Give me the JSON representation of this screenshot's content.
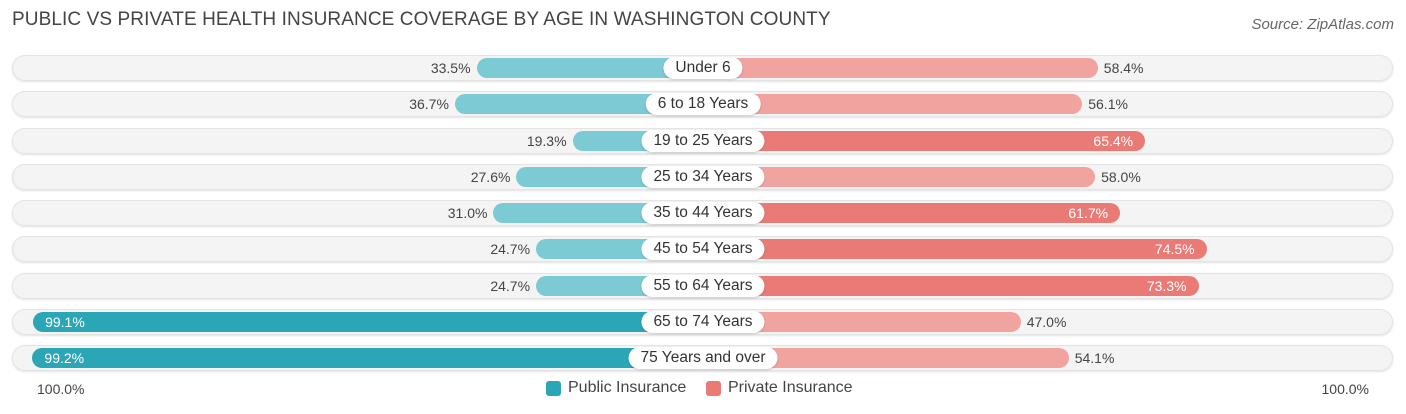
{
  "title": "PUBLIC VS PRIVATE HEALTH INSURANCE COVERAGE BY AGE IN WASHINGTON COUNTY",
  "source": "Source: ZipAtlas.com",
  "axis": {
    "left_label": "100.0%",
    "right_label": "100.0%"
  },
  "legend": {
    "public_label": "Public Insurance",
    "private_label": "Private Insurance"
  },
  "colors": {
    "public": "#7ccad4",
    "public_strong": "#2aa6b7",
    "private": "#f1a3a0",
    "private_strong": "#ea7a76"
  },
  "chart_data": {
    "type": "bar",
    "orientation": "horizontal-diverging",
    "title": "PUBLIC VS PRIVATE HEALTH INSURANCE COVERAGE BY AGE IN WASHINGTON COUNTY",
    "categories": [
      "Under 6",
      "6 to 18 Years",
      "19 to 25 Years",
      "25 to 34 Years",
      "35 to 44 Years",
      "45 to 54 Years",
      "55 to 64 Years",
      "65 to 74 Years",
      "75 Years and over"
    ],
    "series": [
      {
        "name": "Public Insurance",
        "values": [
          33.5,
          36.7,
          19.3,
          27.6,
          31.0,
          24.7,
          24.7,
          99.1,
          99.2
        ],
        "labels": [
          "33.5%",
          "36.7%",
          "19.3%",
          "27.6%",
          "31.0%",
          "24.7%",
          "24.7%",
          "99.1%",
          "99.2%"
        ]
      },
      {
        "name": "Private Insurance",
        "values": [
          58.4,
          56.1,
          65.4,
          58.0,
          61.7,
          74.5,
          73.3,
          47.0,
          54.1
        ],
        "labels": [
          "58.4%",
          "56.1%",
          "65.4%",
          "58.0%",
          "61.7%",
          "74.5%",
          "73.3%",
          "47.0%",
          "54.1%"
        ]
      }
    ],
    "xlim": [
      -100,
      100
    ],
    "legend_position": "bottom-center"
  }
}
